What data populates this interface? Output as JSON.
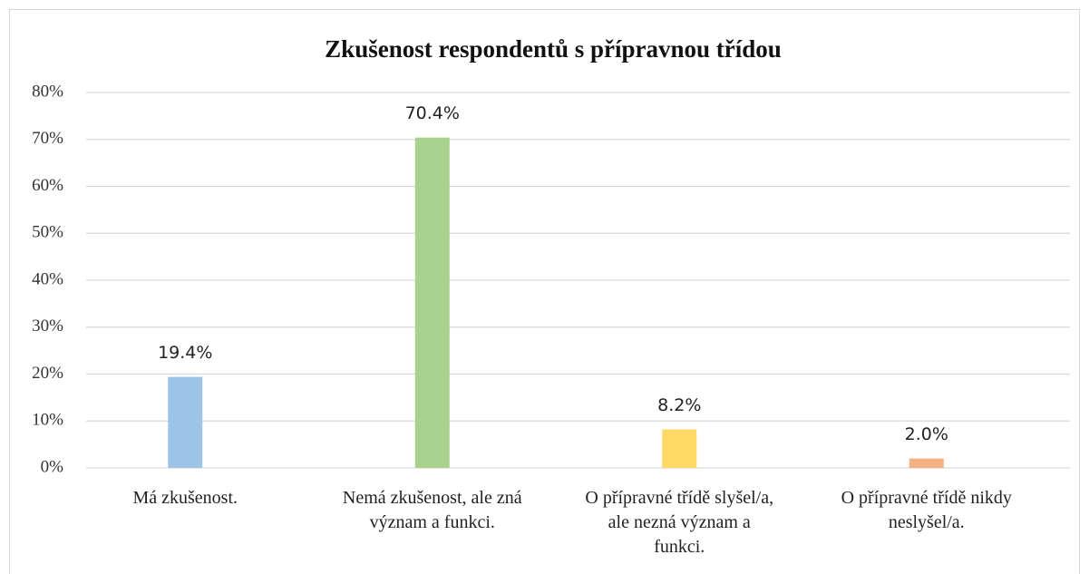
{
  "chart_data": {
    "type": "bar",
    "title": "Zkušenost respondentů s přípravnou třídou",
    "categories": [
      "Má zkušenost.",
      "Nemá zkušenost, ale zná význam a funkci.",
      "O přípravné třídě slyšel/a, ale nezná význam a funkci.",
      "O přípravné třídě nikdy neslyšel/a."
    ],
    "values": [
      19.4,
      70.4,
      8.2,
      2.0
    ],
    "value_labels": [
      "19.4%",
      "70.4%",
      "8.2%",
      "2.0%"
    ],
    "colors": [
      "#9dc3e6",
      "#a9d18e",
      "#ffd966",
      "#f4b183"
    ],
    "ylim": [
      0,
      80
    ],
    "yticks": [
      {
        "value": 0,
        "label": "0%"
      },
      {
        "value": 10,
        "label": "10%"
      },
      {
        "value": 20,
        "label": "20%"
      },
      {
        "value": 30,
        "label": "30%"
      },
      {
        "value": 40,
        "label": "40%"
      },
      {
        "value": 50,
        "label": "50%"
      },
      {
        "value": 60,
        "label": "60%"
      },
      {
        "value": 70,
        "label": "70%"
      },
      {
        "value": 80,
        "label": "80%"
      }
    ],
    "grid": true
  }
}
